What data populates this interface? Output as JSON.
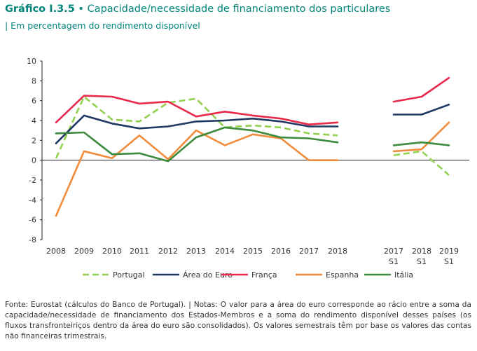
{
  "title": {
    "number": "Gráfico I.3.5",
    "separator": "•",
    "text": "Capacidade/necessidade de financiamento dos particulares"
  },
  "subtitle": "|  Em percentagem do rendimento disponível",
  "footnote": "Fonte: Eurostat (cálculos do Banco de Portugal).  |  Notas: O valor para a área do euro corresponde ao rácio entre a soma da capacidade/necessidade de financiamento dos Estados-Membros e a soma do rendimento disponível desses países (os fluxos transfronteiriços dentro da área do euro são consolidados). Os valores semestrais têm por base os valores das contas não financeiras trimestrais.",
  "chart_data": {
    "type": "line",
    "ylim": [
      -8,
      10
    ],
    "yticks": [
      "-8",
      "-6",
      "-4",
      "-2",
      "0",
      "2",
      "4",
      "6",
      "8",
      "10"
    ],
    "categories": [
      "2008",
      "2009",
      "2010",
      "2011",
      "2012",
      "2013",
      "2014",
      "2015",
      "2016",
      "2017",
      "2018",
      "2017 S1",
      "2018 S1",
      "2019 S1"
    ],
    "category_labels": [
      [
        "2008"
      ],
      [
        "2009"
      ],
      [
        "2010"
      ],
      [
        "2011"
      ],
      [
        "2012"
      ],
      [
        "2013"
      ],
      [
        "2014"
      ],
      [
        "2015"
      ],
      [
        "2016"
      ],
      [
        "2017"
      ],
      [
        "2018"
      ],
      [
        "2017",
        "S1"
      ],
      [
        "2018",
        "S1"
      ],
      [
        "2019",
        "S1"
      ]
    ],
    "grid": false,
    "legend_position": "bottom",
    "series": [
      {
        "name": "Portugal",
        "color": "#92d050",
        "dashed": true,
        "values": [
          0.2,
          6.4,
          4.1,
          3.9,
          5.8,
          6.2,
          3.3,
          3.5,
          3.3,
          2.7,
          2.5,
          0.5,
          0.9,
          -1.5
        ]
      },
      {
        "name": "Área do Euro",
        "color": "#1f3864",
        "dashed": false,
        "values": [
          1.7,
          4.5,
          3.7,
          3.2,
          3.4,
          3.9,
          4.0,
          4.2,
          3.9,
          3.4,
          3.4,
          4.6,
          4.6,
          5.6
        ]
      },
      {
        "name": "França",
        "color": "#e8294a",
        "dashed": false,
        "values": [
          3.8,
          6.5,
          6.4,
          5.7,
          5.9,
          4.4,
          4.9,
          4.5,
          4.2,
          3.6,
          3.8,
          5.9,
          6.4,
          8.3
        ]
      },
      {
        "name": "Espanha",
        "color": "#f08c3c",
        "dashed": false,
        "values": [
          -5.6,
          0.9,
          0.2,
          2.5,
          0.1,
          3.0,
          1.5,
          2.6,
          2.2,
          0.0,
          0.0,
          0.9,
          1.1,
          3.8
        ]
      },
      {
        "name": "Itália",
        "color": "#3d8b3d",
        "dashed": false,
        "values": [
          2.7,
          2.8,
          0.6,
          0.7,
          -0.1,
          2.3,
          3.3,
          3.0,
          2.3,
          2.2,
          1.8,
          1.5,
          1.8,
          1.5
        ]
      }
    ]
  }
}
